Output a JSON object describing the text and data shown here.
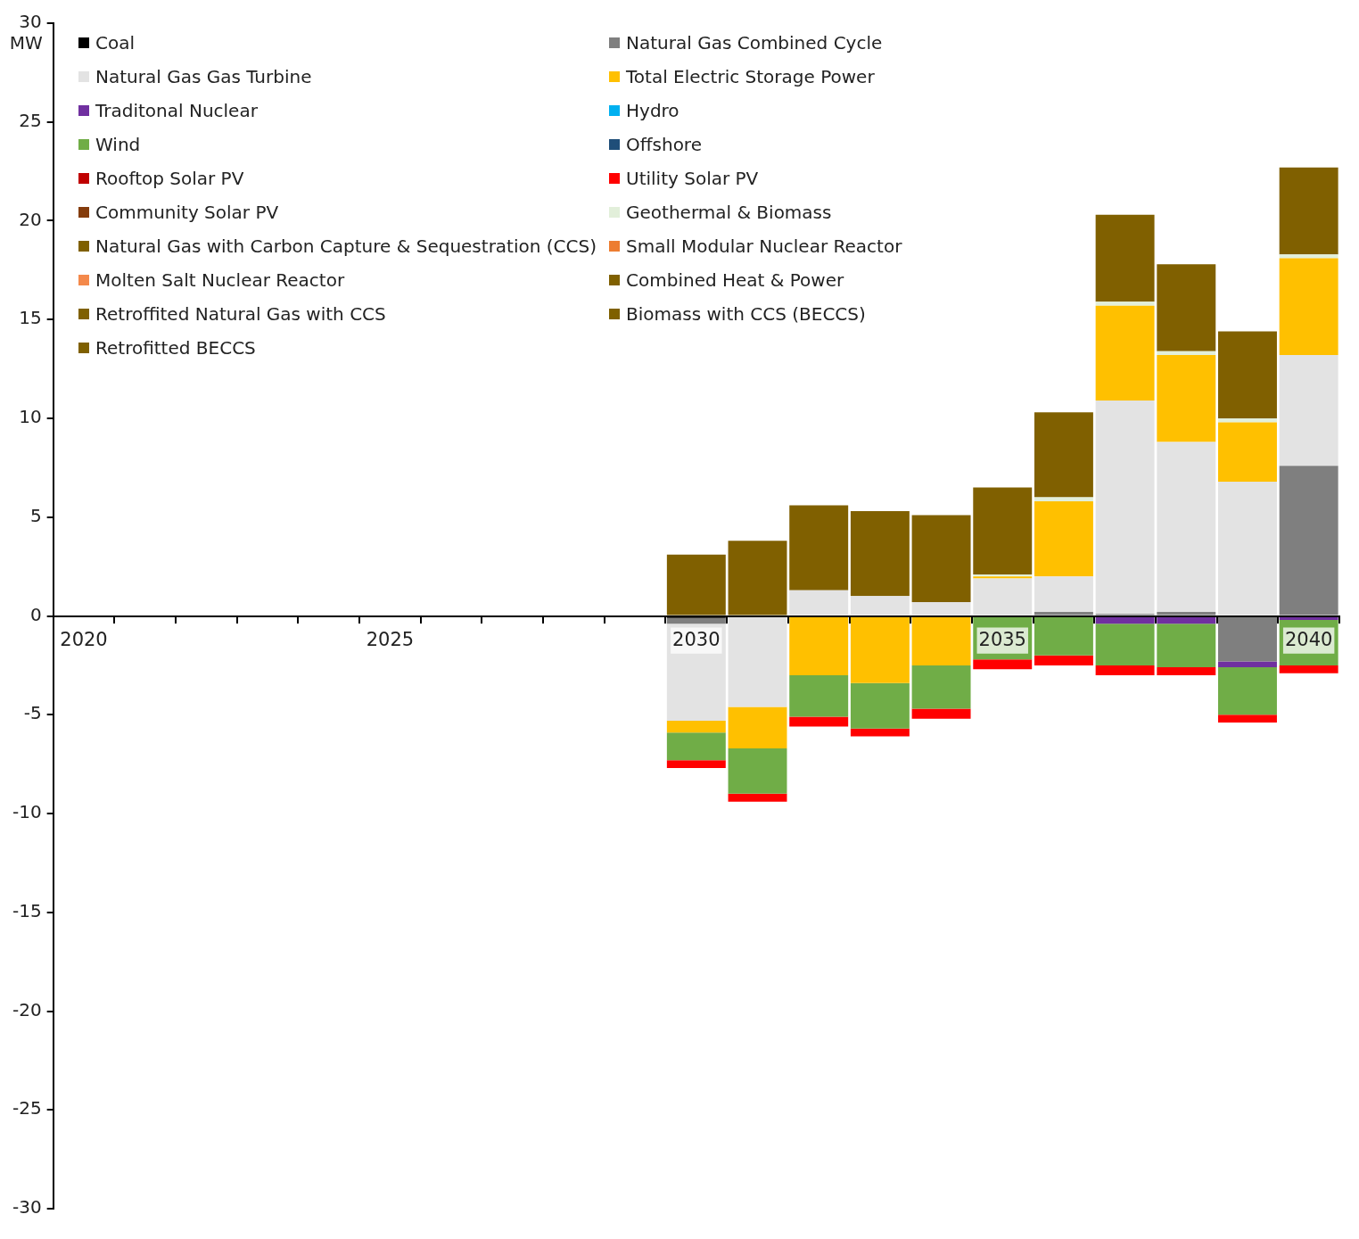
{
  "chart_data": {
    "type": "bar",
    "stacked": true,
    "ylabel": "MW",
    "legend": "top left",
    "grid": false,
    "categories": [
      "2020",
      null,
      null,
      null,
      null,
      "2025",
      null,
      null,
      null,
      null,
      "2030",
      null,
      null,
      null,
      null,
      "2035",
      null,
      null,
      null,
      null,
      "2040"
    ],
    "ylim": [
      -30,
      30
    ],
    "yticks": [
      -30,
      -25,
      -20,
      -15,
      -10,
      -5,
      0,
      5,
      10,
      15,
      20,
      25,
      30
    ],
    "series": [
      {
        "name": "Coal",
        "color": "#000000",
        "values": [
          null,
          null,
          null,
          null,
          null,
          null,
          null,
          null,
          null,
          null,
          -0.1,
          null,
          null,
          null,
          null,
          null,
          null,
          null,
          null,
          null,
          null
        ]
      },
      {
        "name": "Natural Gas Combined Cycle",
        "color": "#7f7f7f",
        "values": [
          null,
          null,
          null,
          null,
          null,
          null,
          null,
          null,
          null,
          null,
          -0.3,
          null,
          null,
          null,
          null,
          null,
          0.2,
          0.1,
          0.2,
          -2.3,
          7.6
        ]
      },
      {
        "name": "Natural Gas Gas Turbine",
        "color": "#e3e3e3",
        "values": [
          null,
          null,
          null,
          null,
          null,
          null,
          null,
          null,
          null,
          null,
          -4.9,
          -4.6,
          1.3,
          1.0,
          0.7,
          1.9,
          1.8,
          10.8,
          8.6,
          6.8,
          5.6
        ]
      },
      {
        "name": "Total Electric Storage Power",
        "color": "#ffc000",
        "values": [
          null,
          null,
          null,
          null,
          null,
          null,
          null,
          null,
          null,
          null,
          -0.6,
          -2.1,
          -3.0,
          -3.4,
          -2.5,
          0.1,
          3.8,
          4.8,
          4.4,
          3.0,
          4.9
        ]
      },
      {
        "name": "Traditonal Nuclear",
        "color": "#7030a0",
        "values": [
          null,
          null,
          null,
          null,
          null,
          null,
          null,
          null,
          null,
          null,
          null,
          null,
          null,
          null,
          null,
          null,
          null,
          -0.4,
          -0.4,
          -0.3,
          -0.2
        ]
      },
      {
        "name": "Hydro",
        "color": "#00b0f0",
        "values": [
          null,
          null,
          null,
          null,
          null,
          null,
          null,
          null,
          null,
          null,
          null,
          null,
          null,
          null,
          null,
          null,
          null,
          null,
          null,
          null,
          null
        ]
      },
      {
        "name": "Wind",
        "color": "#70ad47",
        "values": [
          null,
          null,
          null,
          null,
          null,
          null,
          null,
          null,
          null,
          null,
          -1.4,
          -2.3,
          -2.1,
          -2.3,
          -2.2,
          -2.2,
          -2.0,
          -2.1,
          -2.2,
          -2.4,
          -2.3
        ]
      },
      {
        "name": "Offshore",
        "color": "#1f4e79",
        "values": [
          null,
          null,
          null,
          null,
          null,
          null,
          null,
          null,
          null,
          null,
          null,
          null,
          null,
          null,
          null,
          null,
          null,
          null,
          null,
          null,
          null
        ]
      },
      {
        "name": "Rooftop Solar PV",
        "color": "#c00000",
        "values": [
          null,
          null,
          null,
          null,
          null,
          null,
          null,
          null,
          null,
          null,
          null,
          null,
          null,
          null,
          null,
          null,
          null,
          null,
          null,
          null,
          null
        ]
      },
      {
        "name": "Utility Solar PV",
        "color": "#ff0000",
        "values": [
          null,
          null,
          null,
          null,
          null,
          null,
          null,
          null,
          null,
          null,
          -0.4,
          -0.4,
          -0.5,
          -0.4,
          -0.5,
          -0.5,
          -0.5,
          -0.5,
          -0.4,
          -0.4,
          -0.4
        ]
      },
      {
        "name": "Community Solar PV",
        "color": "#843c0c",
        "values": [
          null,
          null,
          null,
          null,
          null,
          null,
          null,
          null,
          null,
          null,
          null,
          null,
          null,
          null,
          null,
          null,
          null,
          null,
          null,
          null,
          null
        ]
      },
      {
        "name": "Geothermal & Biomass",
        "color": "#e2efda",
        "values": [
          null,
          null,
          null,
          null,
          null,
          null,
          null,
          null,
          null,
          null,
          null,
          null,
          null,
          null,
          null,
          0.1,
          0.2,
          0.2,
          0.2,
          0.2,
          0.2
        ]
      },
      {
        "name": "Natural Gas with Carbon Capture & Sequestration (CCS)",
        "color": "#7f6000",
        "values": [
          null,
          null,
          null,
          null,
          null,
          null,
          null,
          null,
          null,
          null,
          null,
          null,
          null,
          null,
          null,
          null,
          null,
          null,
          null,
          null,
          null
        ]
      },
      {
        "name": "Small Modular Nuclear Reactor",
        "color": "#ed7d31",
        "values": [
          null,
          null,
          null,
          null,
          null,
          null,
          null,
          null,
          null,
          null,
          null,
          null,
          null,
          null,
          null,
          null,
          null,
          null,
          null,
          null,
          null
        ]
      },
      {
        "name": "Molten Salt Nuclear Reactor",
        "color": "#f4894b",
        "values": [
          null,
          null,
          null,
          null,
          null,
          null,
          null,
          null,
          null,
          null,
          null,
          null,
          null,
          null,
          null,
          null,
          null,
          null,
          null,
          null,
          null
        ]
      },
      {
        "name": "Combined Heat & Power",
        "color": "#806000",
        "values": [
          null,
          null,
          null,
          null,
          null,
          null,
          null,
          null,
          null,
          null,
          3.1,
          3.8,
          4.3,
          4.3,
          4.4,
          4.4,
          4.3,
          4.4,
          4.4,
          4.4,
          4.4
        ]
      },
      {
        "name": "Retroffited Natural Gas with CCS",
        "color": "#7f6000",
        "values": [
          null,
          null,
          null,
          null,
          null,
          null,
          null,
          null,
          null,
          null,
          null,
          null,
          null,
          null,
          null,
          null,
          null,
          null,
          null,
          null,
          null
        ]
      },
      {
        "name": "Biomass with CCS (BECCS)",
        "color": "#7f6000",
        "values": [
          null,
          null,
          null,
          null,
          null,
          null,
          null,
          null,
          null,
          null,
          null,
          null,
          null,
          null,
          null,
          null,
          null,
          null,
          null,
          null,
          null
        ]
      },
      {
        "name": "Retrofitted BECCS",
        "color": "#7f6000",
        "values": [
          null,
          null,
          null,
          null,
          null,
          null,
          null,
          null,
          null,
          null,
          null,
          null,
          null,
          null,
          null,
          null,
          null,
          null,
          null,
          null,
          null
        ]
      }
    ]
  }
}
